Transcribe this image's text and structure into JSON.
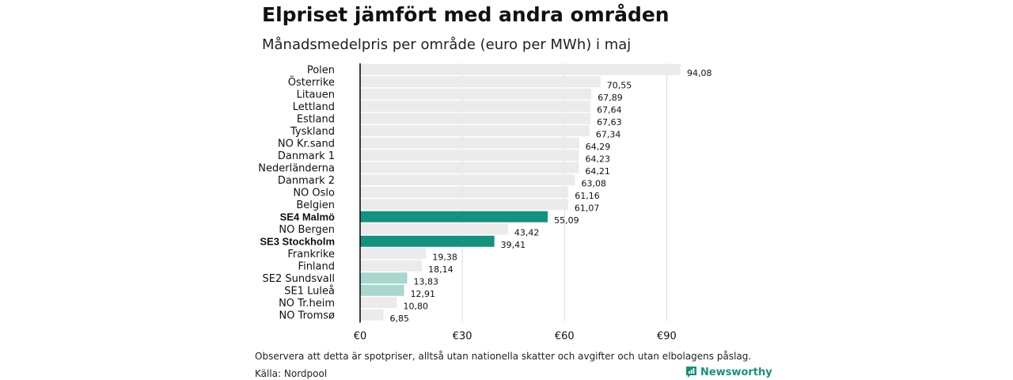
{
  "header": {
    "title": "Elpriset jämfört med andra områden",
    "subtitle": "Månadsmedelpris per område (euro per MWh) i maj"
  },
  "footer": {
    "note": "Observera att detta är spotpriser, alltså utan nationella skatter och avgifter och utan elbolagens påslag.",
    "source": "Källa: Nordpool",
    "logo_text": "Newsworthy"
  },
  "colors": {
    "default_bar": "#ebebeb",
    "highlight_bar": "#14917f",
    "light_highlight_bar": "#a9d6cd",
    "gridline": "#d9d9d9",
    "axis": "#000000",
    "brand": "#1a8f80"
  },
  "chart_data": {
    "type": "bar",
    "orientation": "horizontal",
    "title": "Elpriset jämfört med andra områden",
    "subtitle": "Månadsmedelpris per område (euro per MWh) i maj",
    "xlim": [
      0,
      94.08
    ],
    "x_ticks": [
      0,
      30,
      60,
      90
    ],
    "x_tick_labels": [
      "€0",
      "€30",
      "€60",
      "€90"
    ],
    "grid": true,
    "categories": [
      "Polen",
      "Österrike",
      "Litauen",
      "Lettland",
      "Estland",
      "Tyskland",
      "NO Kr.sand",
      "Danmark 1",
      "Nederländerna",
      "Danmark 2",
      "NO Oslo",
      "Belgien",
      "SE4 Malmö",
      "NO Bergen",
      "SE3 Stockholm",
      "Frankrike",
      "Finland",
      "SE2 Sundsvall",
      "SE1 Luleå",
      "NO Tr.heim",
      "NO Tromsø"
    ],
    "values": [
      94.08,
      70.55,
      67.89,
      67.64,
      67.63,
      67.34,
      64.29,
      64.23,
      64.21,
      63.08,
      61.16,
      61.07,
      55.09,
      43.42,
      39.41,
      19.38,
      18.14,
      13.83,
      12.91,
      10.8,
      6.85
    ],
    "value_labels": [
      "94,08",
      "70,55",
      "67,89",
      "67,64",
      "67,63",
      "67,34",
      "64,29",
      "64,23",
      "64,21",
      "63,08",
      "61,16",
      "61,07",
      "55,09",
      "43,42",
      "39,41",
      "19,38",
      "18,14",
      "13,83",
      "12,91",
      "10,80",
      "6,85"
    ],
    "highlight": [
      "default",
      "default",
      "default",
      "default",
      "default",
      "default",
      "default",
      "default",
      "default",
      "default",
      "default",
      "default",
      "strong",
      "default",
      "strong",
      "default",
      "default",
      "light",
      "light",
      "default",
      "default"
    ]
  }
}
